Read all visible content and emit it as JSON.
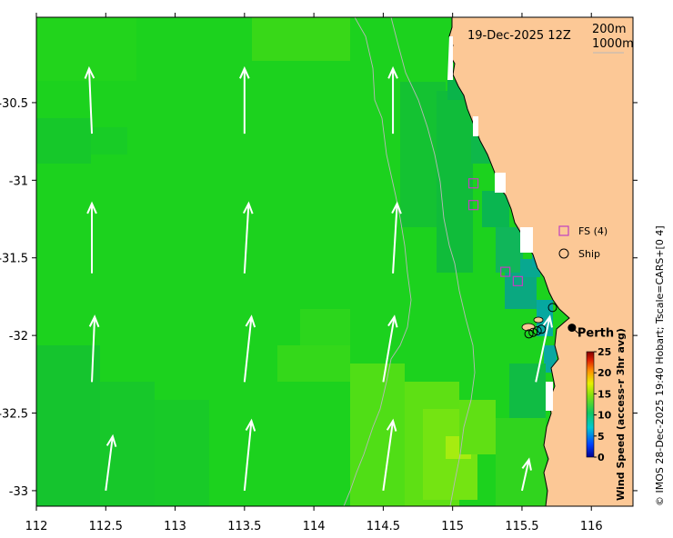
{
  "date_label": "19-Dec-2025 12Z",
  "depth_labels": [
    "200m",
    "1000m"
  ],
  "city": "Perth",
  "legend": {
    "fs_label": "FS (4)",
    "ship_label": "Ship",
    "fs_color": "#c040c0"
  },
  "colorbar": {
    "title": "Wind Speed (access-r 3hr avg)",
    "min": 0,
    "max": 25,
    "ticks": [
      "0",
      "5",
      "10",
      "15",
      "20",
      "25"
    ]
  },
  "credit": "© IMOS 28-Dec-2025 19:40 Hobart; Tscale=CARS+[0 4]",
  "colors": {
    "land": "#fcc896",
    "ocean_main": "#1cd21e",
    "arrow": "#ffffff"
  },
  "x_axis": {
    "range": [
      112,
      116.3
    ],
    "ticks": [
      "112",
      "112.5",
      "113",
      "113.5",
      "114",
      "114.5",
      "115",
      "115.5",
      "116"
    ]
  },
  "y_axis": {
    "range": [
      -33.1,
      -29.95
    ],
    "ticks": [
      "-30.5",
      "-31",
      "-31.5",
      "-32",
      "-32.5",
      "-33"
    ]
  },
  "chart_data": {
    "type": "map",
    "title": "19-Dec-2025 12Z",
    "xlabel": "",
    "ylabel": "",
    "xlim": [
      112,
      116.3
    ],
    "ylim": [
      -33.1,
      -29.95
    ],
    "colorbar_label": "Wind Speed (access-r 3hr avg)",
    "colorbar_range": [
      0,
      25
    ],
    "fs_markers": [
      {
        "lon": 115.15,
        "lat": -31.02
      },
      {
        "lon": 115.15,
        "lat": -31.16
      },
      {
        "lon": 115.38,
        "lat": -31.59
      },
      {
        "lon": 115.47,
        "lat": -31.65
      }
    ],
    "ship_markers": [
      {
        "lon": 115.72,
        "lat": -31.82
      },
      {
        "lon": 115.55,
        "lat": -31.99
      },
      {
        "lon": 115.58,
        "lat": -31.98
      },
      {
        "lon": 115.61,
        "lat": -31.97
      },
      {
        "lon": 115.64,
        "lat": -31.96
      }
    ],
    "city_point": {
      "lon": 115.86,
      "lat": -31.95
    },
    "wind_vectors": [
      {
        "lon": 112.4,
        "lat": -30.7,
        "dlon": -0.02,
        "dlat": 0.42
      },
      {
        "lon": 113.5,
        "lat": -30.7,
        "dlon": 0.0,
        "dlat": 0.42
      },
      {
        "lon": 114.57,
        "lat": -30.7,
        "dlon": 0.0,
        "dlat": 0.42
      },
      {
        "lon": 112.4,
        "lat": -31.6,
        "dlon": 0.0,
        "dlat": 0.45
      },
      {
        "lon": 113.5,
        "lat": -31.6,
        "dlon": 0.03,
        "dlat": 0.45
      },
      {
        "lon": 114.57,
        "lat": -31.6,
        "dlon": 0.03,
        "dlat": 0.45
      },
      {
        "lon": 112.4,
        "lat": -32.3,
        "dlon": 0.02,
        "dlat": 0.42
      },
      {
        "lon": 113.5,
        "lat": -32.3,
        "dlon": 0.05,
        "dlat": 0.42
      },
      {
        "lon": 114.5,
        "lat": -32.3,
        "dlon": 0.08,
        "dlat": 0.42
      },
      {
        "lon": 115.6,
        "lat": -32.3,
        "dlon": 0.1,
        "dlat": 0.42
      },
      {
        "lon": 112.5,
        "lat": -33.0,
        "dlon": 0.05,
        "dlat": 0.35
      },
      {
        "lon": 113.5,
        "lat": -33.0,
        "dlon": 0.05,
        "dlat": 0.45
      },
      {
        "lon": 114.5,
        "lat": -33.0,
        "dlon": 0.07,
        "dlat": 0.45
      },
      {
        "lon": 115.5,
        "lat": -33.0,
        "dlon": 0.05,
        "dlat": 0.2
      }
    ]
  }
}
